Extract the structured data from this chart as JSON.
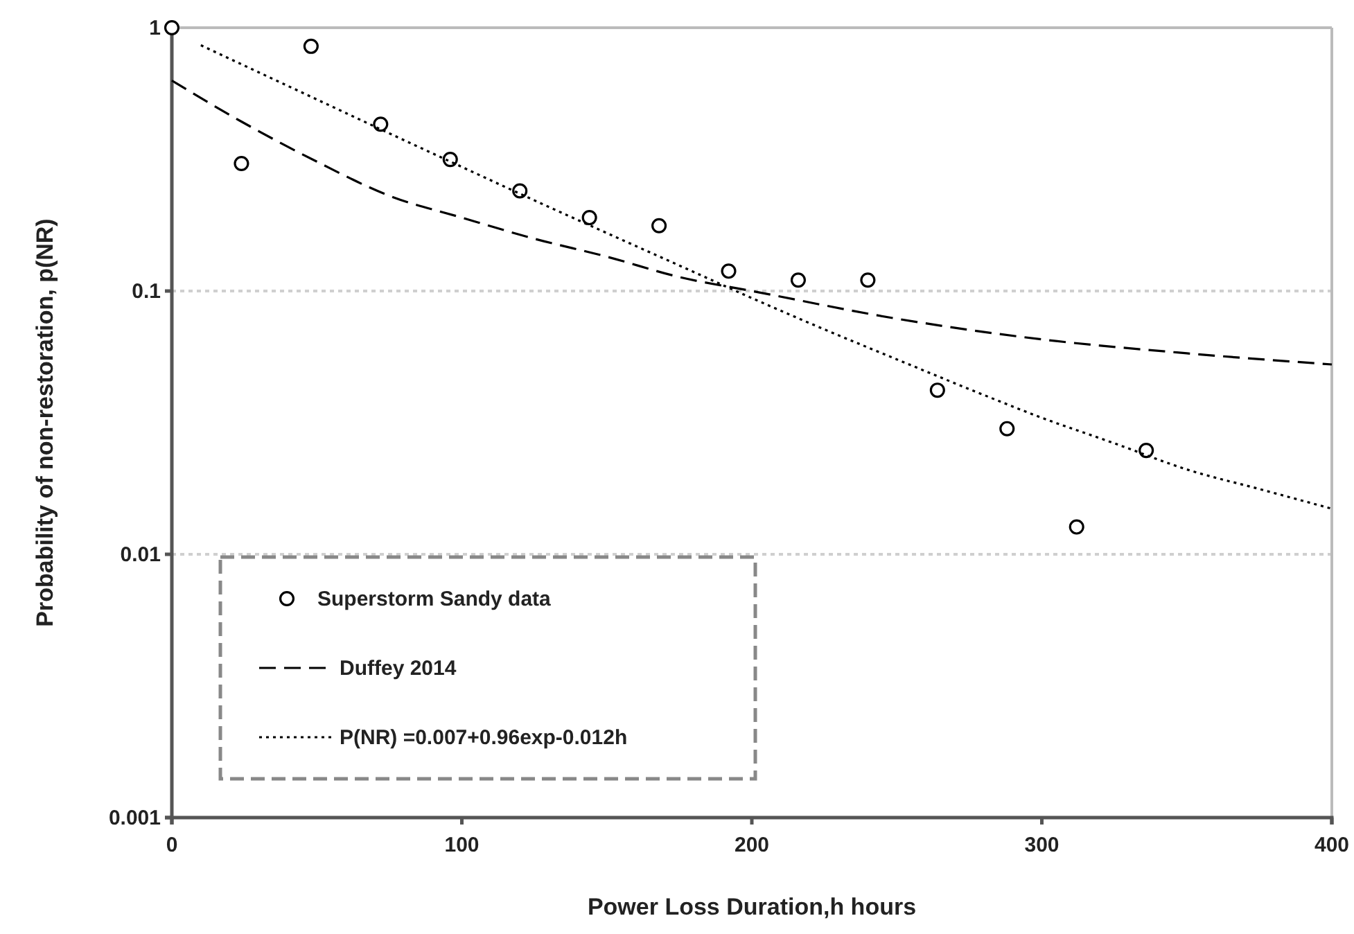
{
  "chart_data": {
    "type": "scatter",
    "xlabel": "Power Loss Duration,h hours",
    "ylabel": "Probability of non-restoration, p(NR)",
    "xlim": [
      0,
      400
    ],
    "xticks": [
      0,
      100,
      200,
      300,
      400
    ],
    "ylim": [
      0.001,
      1
    ],
    "yticks": [
      0.001,
      0.01,
      0.1,
      1
    ],
    "log": "y",
    "grid": "y",
    "legend": "bottom left",
    "series": [
      {
        "name": "Superstorm Sandy data",
        "marker": "circle",
        "color": "#000000",
        "x": [
          0,
          24,
          48,
          72,
          96,
          120,
          144,
          168,
          192,
          216,
          240,
          264,
          288,
          312,
          336
        ],
        "values": [
          1,
          0.305,
          0.85,
          0.43,
          0.316,
          0.24,
          0.19,
          0.177,
          0.119,
          0.11,
          0.11,
          0.042,
          0.03,
          0.0127,
          0.0248
        ]
      },
      {
        "name": "Duffey 2014",
        "type": "line",
        "line_style": "dashed",
        "color": "#000000",
        "x": [
          0,
          24,
          50,
          75,
          100,
          125,
          150,
          175,
          200,
          250,
          300,
          350,
          400
        ],
        "values": [
          0.63,
          0.44,
          0.31,
          0.23,
          0.19,
          0.158,
          0.135,
          0.113,
          0.1,
          0.0785,
          0.0655,
          0.058,
          0.0526
        ]
      },
      {
        "name": "P(NR) =0.007+0.96exp-0.012h",
        "type": "line",
        "line_style": "dotted",
        "color": "#000000",
        "x": [
          10,
          25,
          50,
          75,
          100,
          125,
          150,
          175,
          200,
          225,
          250,
          275,
          300,
          325,
          350,
          375,
          400
        ],
        "values": [
          0.858,
          0.718,
          0.534,
          0.397,
          0.296,
          0.221,
          0.166,
          0.125,
          0.094,
          0.0715,
          0.055,
          0.0424,
          0.033,
          0.0264,
          0.021,
          0.0177,
          0.0149
        ]
      }
    ]
  }
}
